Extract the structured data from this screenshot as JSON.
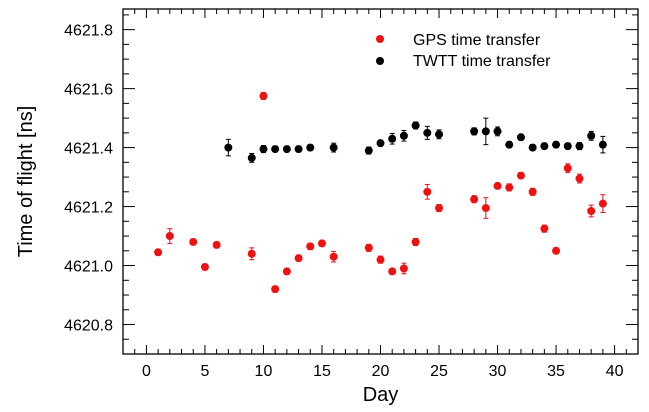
{
  "chart_data": {
    "type": "scatter",
    "xlabel": "Day",
    "ylabel": "Time of flight [ns]",
    "xlim": [
      -2,
      42
    ],
    "ylim": [
      4620.7,
      4621.87
    ],
    "xticks": [
      0,
      5,
      10,
      15,
      20,
      25,
      30,
      35,
      40
    ],
    "yticks": [
      4620.8,
      4621.0,
      4621.2,
      4621.4,
      4621.6,
      4621.8
    ],
    "ytick_labels": [
      "4620.8",
      "4621.0",
      "4621.2",
      "4621.4",
      "4621.6",
      "4621.8"
    ],
    "grid": false,
    "legend_position": "top-right",
    "series": [
      {
        "name": "GPS time transfer",
        "color": "#ee1111",
        "x": [
          1,
          2,
          4,
          5,
          6,
          9,
          10,
          11,
          12,
          13,
          14,
          15,
          16,
          19,
          20,
          21,
          22,
          23,
          24,
          25,
          28,
          29,
          30,
          31,
          32,
          33,
          34,
          35,
          36,
          37,
          38,
          39
        ],
        "y": [
          4621.045,
          4621.1,
          4621.08,
          4620.995,
          4621.07,
          4621.04,
          4621.575,
          4620.92,
          4620.98,
          4621.025,
          4621.065,
          4621.075,
          4621.03,
          4621.06,
          4621.02,
          4620.98,
          4620.99,
          4621.08,
          4621.25,
          4621.195,
          4621.225,
          4621.195,
          4621.27,
          4621.265,
          4621.305,
          4621.25,
          4621.125,
          4621.05,
          4621.33,
          4621.295,
          4621.185,
          4621.21
        ],
        "err": [
          0.01,
          0.025,
          0.01,
          0.01,
          0.01,
          0.02,
          0.012,
          0.01,
          0.01,
          0.01,
          0.01,
          0.01,
          0.018,
          0.012,
          0.012,
          0.01,
          0.018,
          0.012,
          0.025,
          0.012,
          0.012,
          0.035,
          0.01,
          0.012,
          0.01,
          0.012,
          0.012,
          0.01,
          0.015,
          0.015,
          0.02,
          0.03
        ]
      },
      {
        "name": "TWTT time transfer",
        "color": "#000000",
        "x": [
          7,
          9,
          10,
          11,
          12,
          13,
          14,
          16,
          19,
          20,
          21,
          22,
          23,
          24,
          25,
          28,
          29,
          30,
          31,
          32,
          33,
          34,
          35,
          36,
          37,
          38,
          39
        ],
        "y": [
          4621.4,
          4621.365,
          4621.395,
          4621.395,
          4621.395,
          4621.395,
          4621.4,
          4621.4,
          4621.39,
          4621.415,
          4621.43,
          4621.44,
          4621.475,
          4621.45,
          4621.445,
          4621.455,
          4621.455,
          4621.455,
          4621.41,
          4621.435,
          4621.4,
          4621.405,
          4621.41,
          4621.405,
          4621.405,
          4621.44,
          4621.41
        ],
        "err": [
          0.028,
          0.015,
          0.012,
          0.01,
          0.01,
          0.01,
          0.01,
          0.015,
          0.012,
          0.01,
          0.018,
          0.018,
          0.012,
          0.022,
          0.015,
          0.012,
          0.045,
          0.015,
          0.01,
          0.01,
          0.01,
          0.01,
          0.01,
          0.01,
          0.012,
          0.015,
          0.028
        ]
      }
    ]
  }
}
